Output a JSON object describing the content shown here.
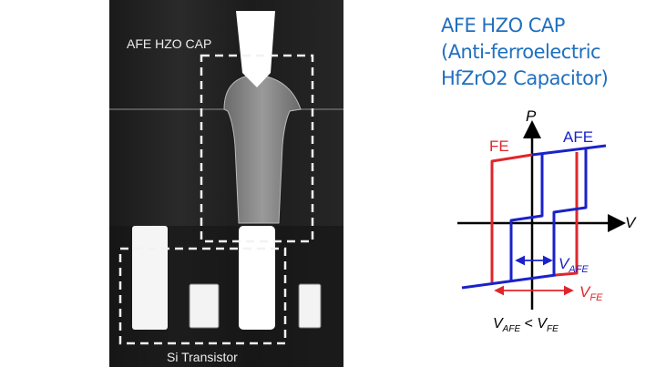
{
  "micrograph": {
    "cap_label": "AFE HZO CAP",
    "transistor_label": "Si Transistor"
  },
  "title": {
    "line1": "AFE HZO CAP",
    "line2": "(Anti-ferroelectric",
    "line3": "HfZrO2 Capacitor)"
  },
  "hysteresis": {
    "y_axis_label": "P",
    "x_axis_label": "V",
    "fe_label": "FE",
    "afe_label": "AFE",
    "v_afe_main": "V",
    "v_afe_sub": "AFE",
    "v_fe_main": "V",
    "v_fe_sub": "FE",
    "relation": {
      "left_main": "V",
      "left_sub": "AFE",
      "op": " < ",
      "right_main": "V",
      "right_sub": "FE"
    },
    "colors": {
      "fe": "#e0262b",
      "afe": "#1a22c8",
      "axis": "#000000"
    }
  },
  "colors": {
    "title": "#1f6fc0"
  }
}
